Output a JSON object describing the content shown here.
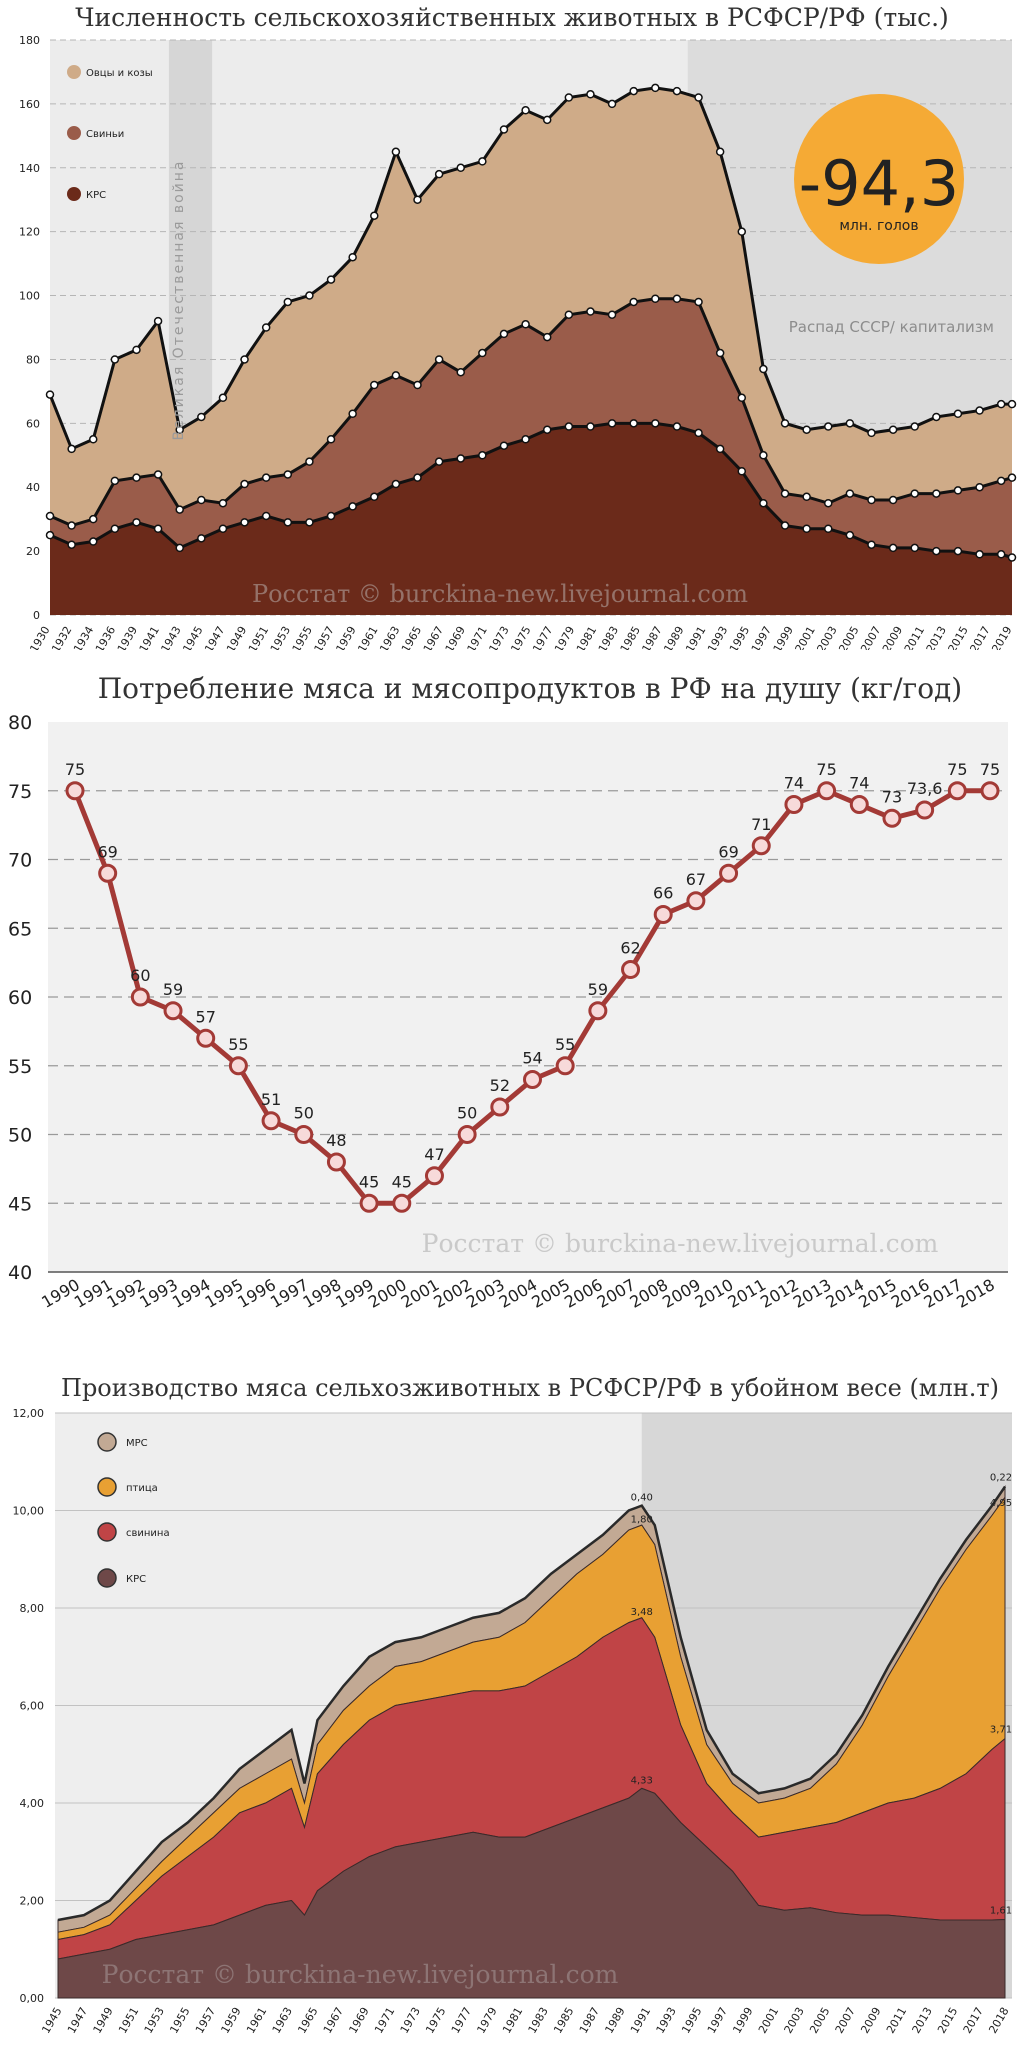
{
  "chart_data": [
    {
      "type": "area",
      "title": "Численность сельскохозяйственных животных в РСФСР/РФ (тыс.)",
      "ylim": [
        0,
        180
      ],
      "yticks": [
        0,
        20,
        40,
        60,
        80,
        100,
        120,
        140,
        160,
        180
      ],
      "x": [
        1930,
        1932,
        1934,
        1936,
        1938,
        1940,
        1942,
        1944,
        1946,
        1948,
        1950,
        1952,
        1954,
        1956,
        1958,
        1960,
        1962,
        1964,
        1966,
        1968,
        1970,
        1972,
        1974,
        1976,
        1978,
        1980,
        1982,
        1984,
        1986,
        1988,
        1990,
        1992,
        1994,
        1996,
        1998,
        2000,
        2002,
        2004,
        2006,
        2008,
        2010,
        2012,
        2014,
        2016,
        2018,
        2019
      ],
      "xticks": [
        "1930",
        "1932",
        "1934",
        "1936",
        "1939",
        "1941",
        "1943",
        "1945",
        "1947",
        "1949",
        "1951",
        "1953",
        "1955",
        "1957",
        "1959",
        "1961",
        "1963",
        "1965",
        "1967",
        "1969",
        "1971",
        "1973",
        "1975",
        "1977",
        "1979",
        "1981",
        "1983",
        "1985",
        "1987",
        "1989",
        "1991",
        "1993",
        "1995",
        "1997",
        "1999",
        "2001",
        "2003",
        "2005",
        "2007",
        "2009",
        "2011",
        "2013",
        "2015",
        "2017",
        "2019"
      ],
      "series": [
        {
          "name": "КРС",
          "color": "#6b2a1a",
          "values": [
            25,
            22,
            23,
            27,
            29,
            27,
            21,
            24,
            27,
            29,
            31,
            29,
            29,
            31,
            34,
            37,
            41,
            43,
            48,
            49,
            50,
            53,
            55,
            58,
            59,
            59,
            60,
            60,
            60,
            59,
            57,
            52,
            45,
            35,
            28,
            27,
            27,
            25,
            22,
            21,
            21,
            20,
            20,
            19,
            19,
            18
          ]
        },
        {
          "name": "Свиньи",
          "color": "#9a5c4a",
          "values": [
            31,
            28,
            30,
            42,
            43,
            44,
            33,
            36,
            35,
            41,
            43,
            44,
            48,
            55,
            63,
            72,
            75,
            72,
            80,
            76,
            82,
            88,
            91,
            87,
            94,
            95,
            94,
            98,
            99,
            99,
            98,
            82,
            68,
            50,
            38,
            37,
            35,
            38,
            36,
            36,
            38,
            38,
            39,
            40,
            42,
            43
          ]
        },
        {
          "name": "Овцы и козы",
          "color": "#cfab88",
          "values": [
            69,
            52,
            55,
            80,
            83,
            92,
            58,
            62,
            68,
            80,
            90,
            98,
            100,
            105,
            112,
            125,
            145,
            130,
            138,
            140,
            142,
            152,
            158,
            155,
            162,
            163,
            160,
            164,
            165,
            164,
            162,
            145,
            120,
            77,
            60,
            58,
            59,
            60,
            57,
            58,
            59,
            62,
            63,
            64,
            66,
            66
          ]
        }
      ],
      "legend": [
        "Овцы и козы",
        "Свиньи",
        "КРС"
      ],
      "annotations": {
        "war": "Великая Отечественная война",
        "collapse": "Распад СССР/ капитализм",
        "badge_value": "-94,3",
        "badge_unit": "млн. голов",
        "watermark": "Росстат © burckina-new.livejournal.com"
      }
    },
    {
      "type": "line",
      "title": "Потребление мяса и мясопродуктов в РФ на душу (кг/год)",
      "ylim": [
        40,
        80
      ],
      "yticks": [
        40,
        45,
        50,
        55,
        60,
        65,
        70,
        75,
        80
      ],
      "categories": [
        "1990",
        "1991",
        "1992",
        "1993",
        "1994",
        "1995",
        "1996",
        "1997",
        "1998",
        "1999",
        "2000",
        "2001",
        "2002",
        "2003",
        "2004",
        "2005",
        "2006",
        "2007",
        "2008",
        "2009",
        "2010",
        "2011",
        "2012",
        "2013",
        "2014",
        "2015",
        "2016",
        "2017",
        "2018"
      ],
      "values": [
        75,
        69,
        60,
        59,
        57,
        55,
        51,
        50,
        48,
        45,
        45,
        47,
        50,
        52,
        54,
        55,
        59,
        62,
        66,
        67,
        69,
        71,
        74,
        75,
        74,
        73,
        73.6,
        75,
        75
      ],
      "labels": [
        "75",
        "69",
        "60",
        "59",
        "57",
        "55",
        "51",
        "50",
        "48",
        "45",
        "45",
        "47",
        "50",
        "52",
        "54",
        "55",
        "59",
        "62",
        "66",
        "67",
        "69",
        "71",
        "74",
        "75",
        "74",
        "73",
        "73,6",
        "75",
        "75"
      ],
      "color": "#a33a36",
      "watermark": "Росстат © burckina-new.livejournal.com"
    },
    {
      "type": "area",
      "title": "Производство мяса сельхозживотных в РСФСР/РФ в убойном весе (млн.т)",
      "ylim": [
        0,
        12
      ],
      "yticks": [
        "0,00",
        "2,00",
        "4,00",
        "6,00",
        "8,00",
        "10,00",
        "12,00"
      ],
      "x": [
        1945,
        1947,
        1949,
        1951,
        1953,
        1955,
        1957,
        1959,
        1961,
        1963,
        1964,
        1965,
        1967,
        1969,
        1971,
        1973,
        1975,
        1977,
        1979,
        1981,
        1983,
        1985,
        1987,
        1989,
        1990,
        1991,
        1993,
        1995,
        1997,
        1999,
        2001,
        2003,
        2005,
        2007,
        2009,
        2011,
        2013,
        2015,
        2017,
        2018
      ],
      "xticks": [
        "1945",
        "1947",
        "1949",
        "1951",
        "1953",
        "1955",
        "1957",
        "1959",
        "1961",
        "1963",
        "1965",
        "1967",
        "1969",
        "1971",
        "1973",
        "1975",
        "1977",
        "1979",
        "1981",
        "1983",
        "1985",
        "1987",
        "1989",
        "1991",
        "1993",
        "1995",
        "1997",
        "1999",
        "2001",
        "2003",
        "2005",
        "2007",
        "2009",
        "2011",
        "2013",
        "2015",
        "2017",
        "2018"
      ],
      "series": [
        {
          "name": "КРС",
          "color": "#6e4848",
          "values": [
            0.8,
            0.9,
            1.0,
            1.2,
            1.3,
            1.4,
            1.5,
            1.7,
            1.9,
            2.0,
            1.7,
            2.2,
            2.6,
            2.9,
            3.1,
            3.2,
            3.3,
            3.4,
            3.3,
            3.3,
            3.5,
            3.7,
            3.9,
            4.1,
            4.3,
            4.2,
            3.6,
            3.1,
            2.6,
            1.9,
            1.8,
            1.85,
            1.75,
            1.7,
            1.7,
            1.65,
            1.6,
            1.6,
            1.6,
            1.61
          ]
        },
        {
          "name": "свинина",
          "color": "#c04446",
          "values": [
            1.2,
            1.3,
            1.5,
            2.0,
            2.5,
            2.9,
            3.3,
            3.8,
            4.0,
            4.3,
            3.5,
            4.6,
            5.2,
            5.7,
            6.0,
            6.1,
            6.2,
            6.3,
            6.3,
            6.4,
            6.7,
            7.0,
            7.4,
            7.7,
            7.8,
            7.4,
            5.6,
            4.4,
            3.8,
            3.3,
            3.4,
            3.5,
            3.6,
            3.8,
            4.0,
            4.1,
            4.3,
            4.6,
            5.1,
            5.32
          ]
        },
        {
          "name": "птица",
          "color": "#e8a033",
          "values": [
            1.35,
            1.45,
            1.7,
            2.25,
            2.8,
            3.3,
            3.8,
            4.3,
            4.6,
            4.9,
            4.0,
            5.2,
            5.9,
            6.4,
            6.8,
            6.9,
            7.1,
            7.3,
            7.4,
            7.7,
            8.2,
            8.7,
            9.1,
            9.6,
            9.7,
            9.3,
            7.0,
            5.2,
            4.4,
            4.0,
            4.1,
            4.3,
            4.8,
            5.6,
            6.6,
            7.5,
            8.4,
            9.2,
            9.9,
            10.27
          ]
        },
        {
          "name": "МРС",
          "color": "#c2a994",
          "values": [
            1.6,
            1.7,
            2.0,
            2.6,
            3.2,
            3.6,
            4.1,
            4.7,
            5.1,
            5.5,
            4.4,
            5.7,
            6.4,
            7.0,
            7.3,
            7.4,
            7.6,
            7.8,
            7.9,
            8.2,
            8.7,
            9.1,
            9.5,
            10.0,
            10.1,
            9.7,
            7.4,
            5.5,
            4.6,
            4.2,
            4.3,
            4.5,
            5.0,
            5.8,
            6.8,
            7.7,
            8.6,
            9.4,
            10.1,
            10.49
          ]
        }
      ],
      "legend": [
        "МРС",
        "птица",
        "свинина",
        "КРС"
      ],
      "point_labels": {
        "y1990": [
          "0,40",
          "1,80",
          "3,48",
          "4,33"
        ],
        "y2018": [
          "0,22",
          "4,95",
          "3,71",
          "1,61"
        ]
      },
      "watermark": "Росстат © burckina-new.livejournal.com"
    }
  ]
}
